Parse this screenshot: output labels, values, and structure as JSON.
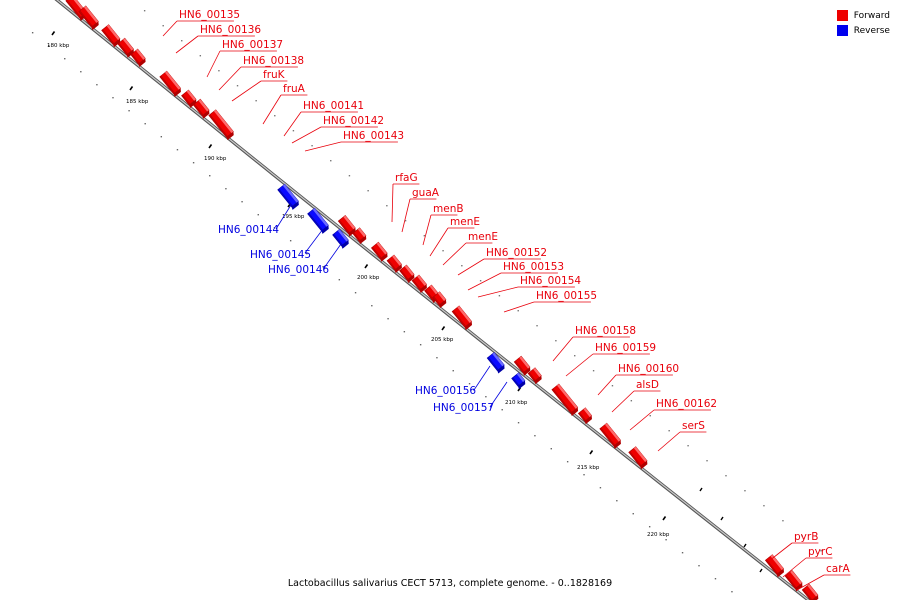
{
  "caption": "Lactobacillus salivarius CECT 5713, complete genome. - 0..1828169",
  "legend": [
    {
      "label": "Forward",
      "color": "#ee0000"
    },
    {
      "label": "Reverse",
      "color": "#0000ee"
    }
  ],
  "colors": {
    "forward": "#ee0000",
    "forward_side": "#b00000",
    "forward_top": "#ff6a6a",
    "reverse": "#0a0aff",
    "reverse_side": "#0000a8",
    "reverse_top": "#6a6aff",
    "backbone": "#808080",
    "forward_label": "#e8000b",
    "reverse_label": "#0000e0"
  },
  "scale_ticks": [
    {
      "label": "180 kbp"
    },
    {
      "label": "185 kbp"
    },
    {
      "label": "190 kbp"
    },
    {
      "label": "195 kbp"
    },
    {
      "label": "200 kbp"
    },
    {
      "label": "205 kbp"
    },
    {
      "label": "210 kbp"
    },
    {
      "label": "215 kbp"
    },
    {
      "label": "220 kbp"
    }
  ],
  "genes": [
    {
      "name": "HN6_00135",
      "strand": "forward"
    },
    {
      "name": "HN6_00136",
      "strand": "forward"
    },
    {
      "name": "HN6_00137",
      "strand": "forward"
    },
    {
      "name": "HN6_00138",
      "strand": "forward"
    },
    {
      "name": "fruK",
      "strand": "forward"
    },
    {
      "name": "fruA",
      "strand": "forward"
    },
    {
      "name": "HN6_00141",
      "strand": "forward"
    },
    {
      "name": "HN6_00142",
      "strand": "forward"
    },
    {
      "name": "HN6_00143",
      "strand": "forward"
    },
    {
      "name": "HN6_00144",
      "strand": "reverse"
    },
    {
      "name": "HN6_00145",
      "strand": "reverse"
    },
    {
      "name": "HN6_00146",
      "strand": "reverse"
    },
    {
      "name": "rfaG",
      "strand": "forward"
    },
    {
      "name": "guaA",
      "strand": "forward"
    },
    {
      "name": "menB",
      "strand": "forward"
    },
    {
      "name": "menE",
      "strand": "forward"
    },
    {
      "name": "menE",
      "strand": "forward"
    },
    {
      "name": "HN6_00152",
      "strand": "forward"
    },
    {
      "name": "HN6_00153",
      "strand": "forward"
    },
    {
      "name": "HN6_00154",
      "strand": "forward"
    },
    {
      "name": "HN6_00155",
      "strand": "forward"
    },
    {
      "name": "HN6_00156",
      "strand": "reverse"
    },
    {
      "name": "HN6_00157",
      "strand": "reverse"
    },
    {
      "name": "HN6_00158",
      "strand": "forward"
    },
    {
      "name": "HN6_00159",
      "strand": "forward"
    },
    {
      "name": "HN6_00160",
      "strand": "forward"
    },
    {
      "name": "alsD",
      "strand": "forward"
    },
    {
      "name": "HN6_00162",
      "strand": "forward"
    },
    {
      "name": "serS",
      "strand": "forward"
    },
    {
      "name": "pyrB",
      "strand": "forward"
    },
    {
      "name": "pyrC",
      "strand": "forward"
    },
    {
      "name": "carA",
      "strand": "forward"
    }
  ]
}
